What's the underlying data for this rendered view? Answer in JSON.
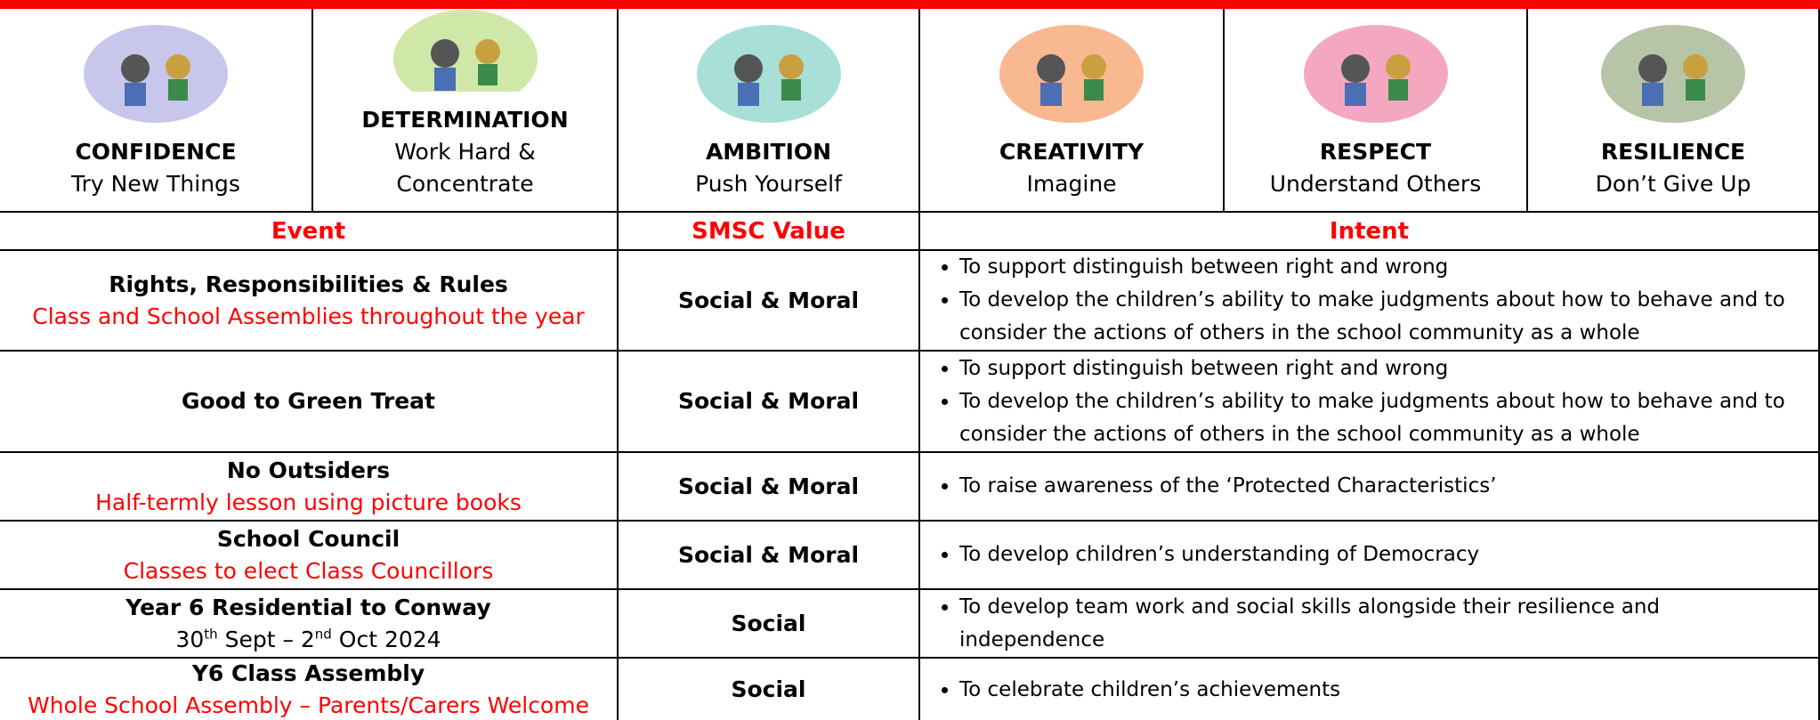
{
  "values": [
    {
      "title": "CONFIDENCE",
      "subtitle": "Try New Things"
    },
    {
      "title": "DETERMINATION",
      "subtitle": "Work Hard & Concentrate"
    },
    {
      "title": "AMBITION",
      "subtitle": "Push Yourself"
    },
    {
      "title": "CREATIVITY",
      "subtitle": "Imagine"
    },
    {
      "title": "RESPECT",
      "subtitle": "Understand Others"
    },
    {
      "title": "RESILIENCE",
      "subtitle": "Don’t Give Up"
    }
  ],
  "header": [
    "Event",
    "SMSC Value",
    "Intent"
  ],
  "rows": [
    {
      "event": "Rights, Responsibilities & Rules",
      "detail": [
        "Class and School Assemblies throughout the year"
      ],
      "smsc": "Social & Moral",
      "intent": [
        "To support distinguish between right and wrong",
        "To develop the children’s ability to make judgments about how to behave and to consider the actions of others in the school community as a whole"
      ]
    },
    {
      "event": "Good to Green Treat",
      "smsc": "Social & Moral",
      "intent": [
        "To support distinguish between right and wrong",
        "To develop the children’s ability to make judgments about how to behave and to consider the actions of others in the school community as a whole"
      ]
    },
    {
      "event": "No Outsiders",
      "detail": [
        "Half-termly lesson using picture books"
      ],
      "smsc": "Social & Moral",
      "intent": [
        "To raise awareness of the ‘Protected Characteristics’"
      ]
    },
    {
      "event": "School Council",
      "detail": [
        "Classes to elect Class Councillors"
      ],
      "smsc": "Social & Moral",
      "intent": [
        "To develop children’s understanding of Democracy"
      ]
    },
    {
      "event": "Year 6 Residential to Conway",
      "date": [
        "30",
        "th",
        " Sept – 2",
        "nd",
        " Oct 2024"
      ],
      "smsc": "Social",
      "intent": [
        "To develop team work and social skills alongside their resilience and independence"
      ]
    },
    {
      "event": "Y6 Class Assembly",
      "detail": [
        "Whole School Assembly – Parents/Carers Welcome"
      ],
      "smsc": "Social",
      "intent": [
        "To celebrate children’s achievements"
      ]
    }
  ]
}
